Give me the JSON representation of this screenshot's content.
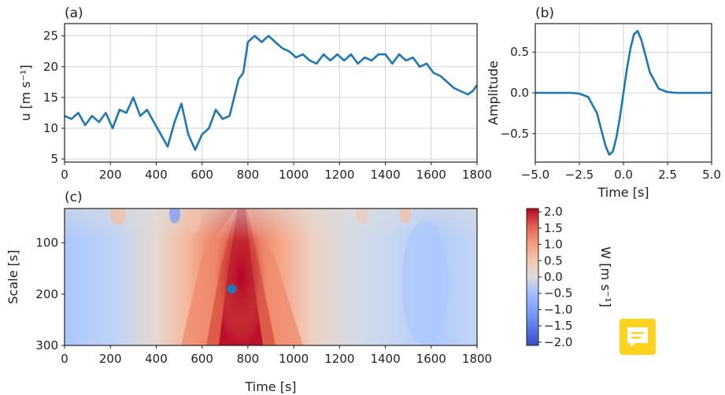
{
  "panels": {
    "a": "(a)",
    "b": "(b)",
    "c": "(c)"
  },
  "colors": {
    "line": "#1f77b4",
    "grid": "#d3d3d3",
    "note_button": "#ffd21f"
  },
  "note_button": {
    "icon": "chat-note-icon"
  },
  "chart_data": [
    {
      "panel": "(a)",
      "type": "line",
      "xlabel": "",
      "ylabel": "u [m s⁻¹]",
      "xlim": [
        0,
        1800
      ],
      "ylim": [
        4.5,
        27
      ],
      "xticks": [
        0,
        200,
        400,
        600,
        800,
        1000,
        1200,
        1400,
        1600,
        1800
      ],
      "yticks": [
        5,
        10,
        15,
        20,
        25
      ],
      "grid": true,
      "series": [
        {
          "x": [
            0,
            30,
            60,
            90,
            120,
            150,
            180,
            210,
            240,
            270,
            300,
            330,
            360,
            390,
            420,
            450,
            480,
            510,
            540,
            570,
            600,
            630,
            660,
            690,
            720,
            740,
            760,
            780,
            800,
            830,
            860,
            890,
            920,
            950,
            980,
            1010,
            1040,
            1070,
            1100,
            1130,
            1160,
            1190,
            1220,
            1250,
            1280,
            1310,
            1340,
            1370,
            1400,
            1430,
            1460,
            1490,
            1520,
            1550,
            1580,
            1610,
            1640,
            1670,
            1700,
            1730,
            1760,
            1780,
            1800
          ],
          "y": [
            12,
            11.5,
            12.5,
            10.5,
            12,
            11,
            12.5,
            10,
            13,
            12.5,
            15,
            12,
            13,
            11,
            9,
            7,
            11,
            14,
            9,
            6.5,
            9,
            10,
            13,
            11.5,
            12,
            15,
            18,
            19,
            24,
            25,
            24,
            25,
            24,
            23,
            22.5,
            21.5,
            22,
            21,
            20.5,
            22,
            21,
            22,
            21,
            22,
            20.5,
            21.5,
            21,
            22,
            22,
            20.5,
            22,
            21,
            21.5,
            20,
            20.5,
            19,
            18.5,
            17.5,
            16.5,
            16,
            15.5,
            16,
            17
          ]
        }
      ]
    },
    {
      "panel": "(b)",
      "type": "line",
      "xlabel": "Time [s]",
      "ylabel": "Amplitude",
      "xlim": [
        -5,
        5
      ],
      "ylim": [
        -0.85,
        0.85
      ],
      "xticks": [
        -5.0,
        -2.5,
        0.0,
        2.5,
        5.0
      ],
      "xtick_labels": [
        "−5.0",
        "−2.5",
        "0.0",
        "2.5",
        "5.0"
      ],
      "yticks": [
        -0.5,
        0.0,
        0.5
      ],
      "ytick_labels": [
        "−0.5",
        "0.0",
        "0.5"
      ],
      "grid": true,
      "series": [
        {
          "x": [
            -5,
            -4,
            -3,
            -2.5,
            -2,
            -1.5,
            -1.2,
            -1,
            -0.8,
            -0.6,
            -0.4,
            -0.2,
            0,
            0.2,
            0.4,
            0.6,
            0.8,
            1,
            1.2,
            1.5,
            2,
            2.5,
            3,
            4,
            5
          ],
          "y": [
            0,
            0,
            0,
            -0.01,
            -0.05,
            -0.25,
            -0.5,
            -0.66,
            -0.76,
            -0.72,
            -0.55,
            -0.3,
            0,
            0.3,
            0.55,
            0.72,
            0.76,
            0.66,
            0.5,
            0.25,
            0.05,
            0.01,
            0,
            0,
            0
          ]
        }
      ]
    },
    {
      "panel": "(c)",
      "type": "heatmap",
      "xlabel": "Time [s]",
      "ylabel": "Scale [s]",
      "xlim": [
        0,
        1800
      ],
      "ylim": [
        300,
        33
      ],
      "xticks": [
        0,
        200,
        400,
        600,
        800,
        1000,
        1200,
        1400,
        1600,
        1800
      ],
      "yticks": [
        100,
        200,
        300
      ],
      "marker": {
        "x": 730,
        "y": 190
      },
      "colorbar": {
        "label": "W [m s⁻¹]",
        "range": [
          -2.1,
          2.1
        ],
        "colormap": "coolwarm",
        "ticks": [
          2.0,
          1.5,
          1.0,
          0.5,
          0.0,
          -0.5,
          -1.0,
          -1.5,
          -2.0
        ],
        "tick_labels": [
          "2.0",
          "1.5",
          "1.0",
          "0.5",
          "0.0",
          "−0.5",
          "−1.0",
          "−1.5",
          "−2.0"
        ]
      }
    }
  ]
}
